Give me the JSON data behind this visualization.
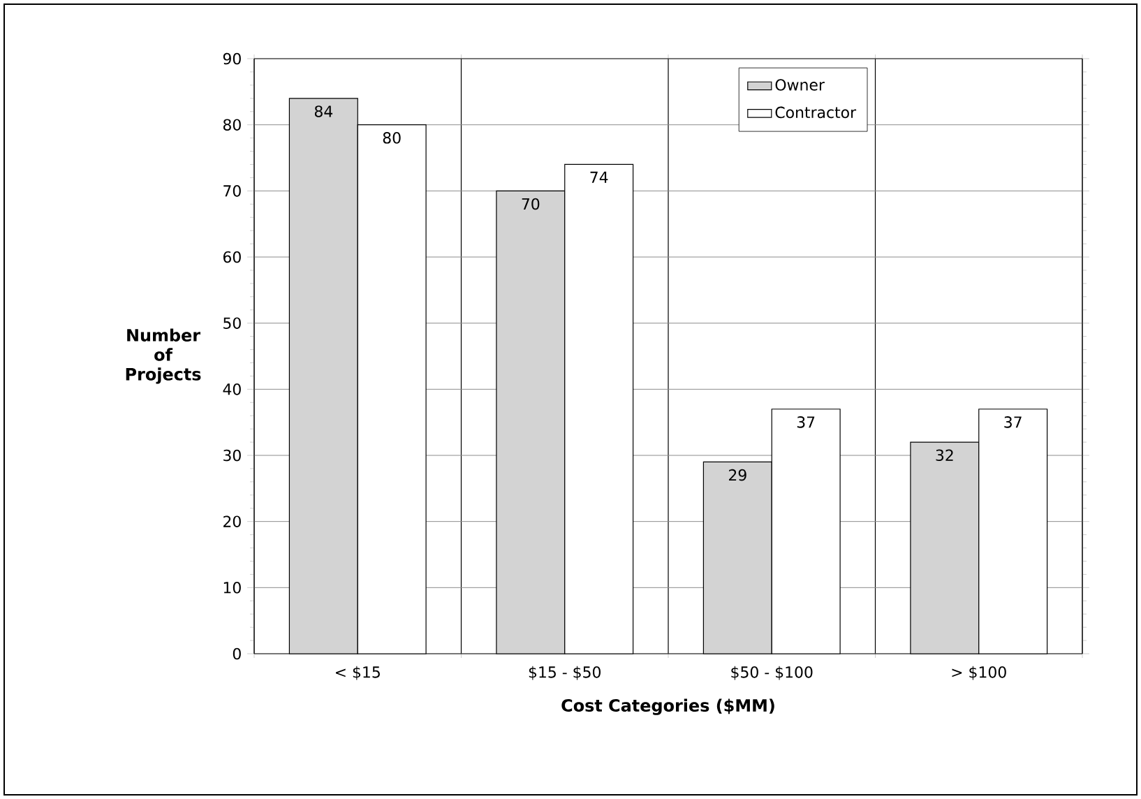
{
  "chart_data": {
    "type": "bar",
    "xlabel": "Cost Categories ($MM)",
    "ylabel": "Number of Projects",
    "categories": [
      "< $15",
      "$15 - $50",
      "$50 - $100",
      "> $100"
    ],
    "series": [
      {
        "name": "Owner",
        "color": "#d3d3d3",
        "values": [
          84,
          70,
          29,
          32
        ]
      },
      {
        "name": "Contractor",
        "color": "#ffffff",
        "values": [
          80,
          74,
          37,
          37
        ]
      }
    ],
    "ylim": [
      0,
      90
    ],
    "yticks": [
      0,
      10,
      20,
      30,
      40,
      50,
      60,
      70,
      80,
      90
    ],
    "grid": true,
    "legend": "top right",
    "data_labels": true
  }
}
